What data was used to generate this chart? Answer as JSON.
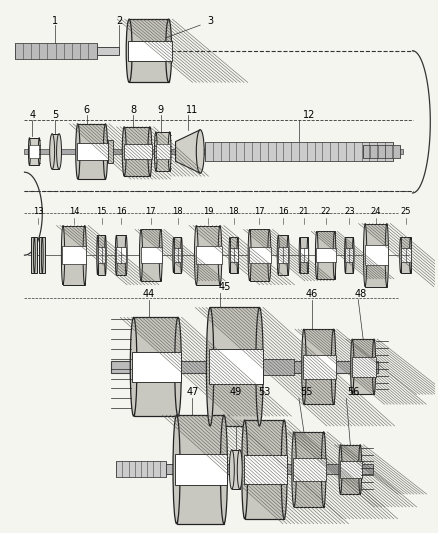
{
  "bg_color": "#f5f5f0",
  "line_color": "#333333",
  "gear_fill": "#c8c8c0",
  "gear_dark": "#888880",
  "gear_edge": "#222222",
  "shaft_fill": "#d0d0c8",
  "white": "#ffffff",
  "hatch_color": "#555550",
  "fig_w": 4.38,
  "fig_h": 5.33,
  "dpi": 100
}
